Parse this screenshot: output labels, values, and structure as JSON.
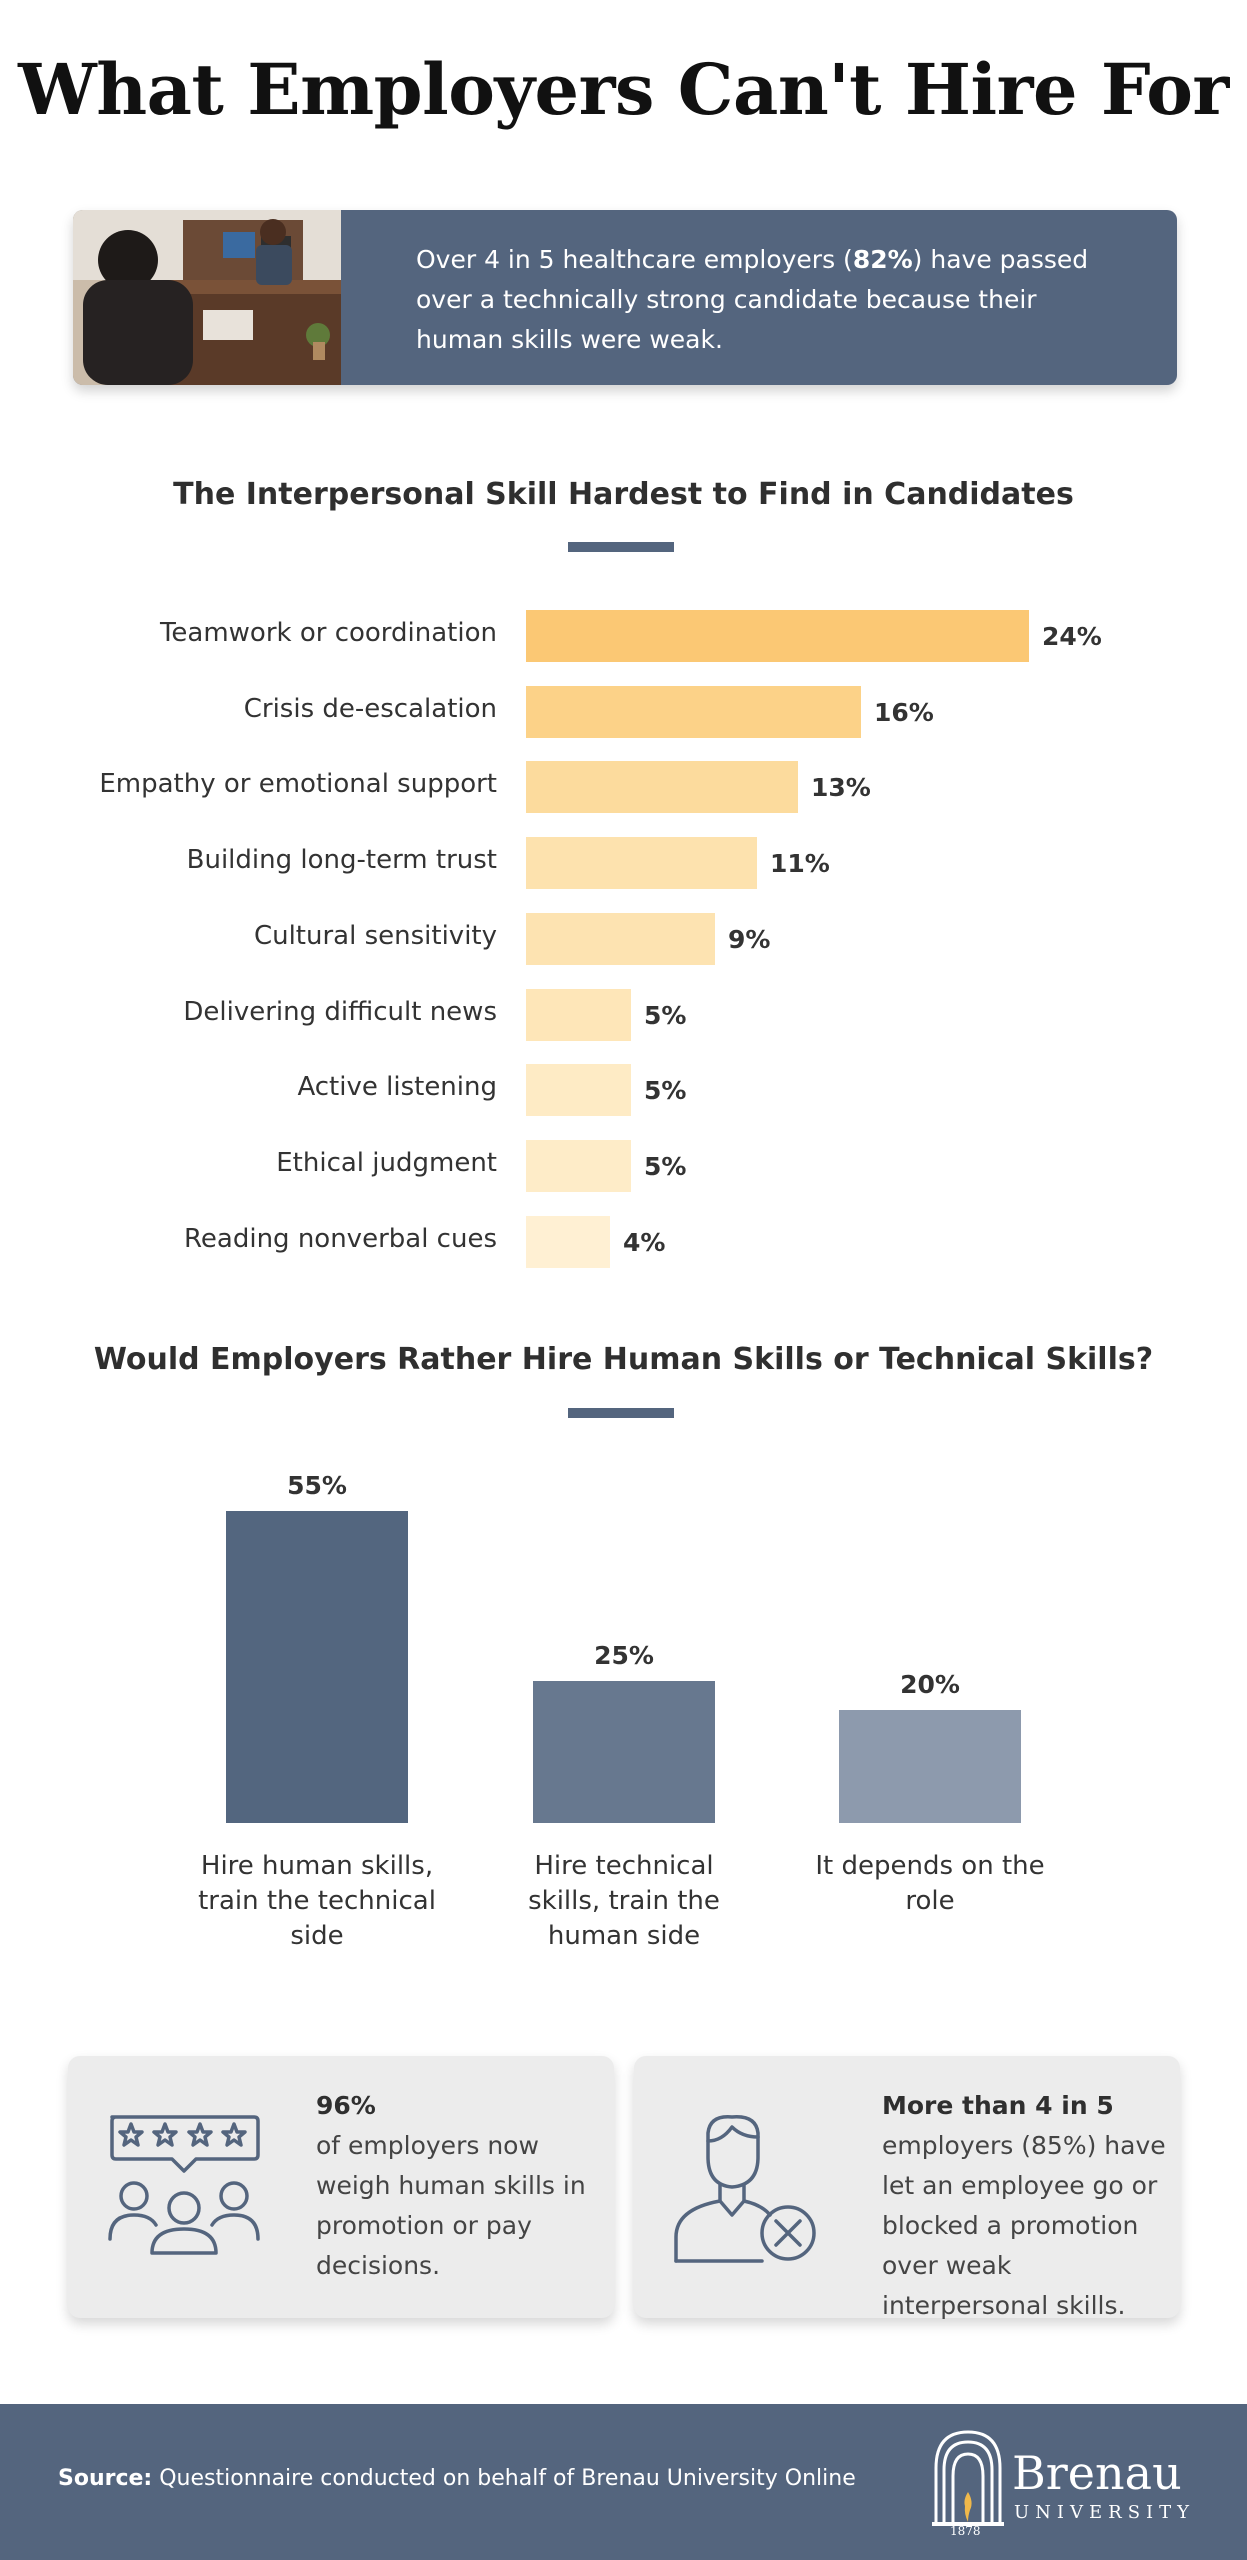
{
  "title": "What Employers Can't Hire For",
  "intro": {
    "text_before": "Over 4 in 5 healthcare employers (",
    "highlight": "82%",
    "text_after": ") have passed over a technically strong candidate because their human skills were weak."
  },
  "section1": {
    "title": "The Interpersonal Skill Hardest to Find in Candidates"
  },
  "section2": {
    "title": "Would Employers Rather Hire Human Skills or Technical Skills?"
  },
  "chart_data": [
    {
      "type": "bar",
      "orientation": "horizontal",
      "title": "The Interpersonal Skill Hardest to Find in Candidates",
      "categories": [
        "Teamwork or coordination",
        "Crisis de-escalation",
        "Empathy or emotional support",
        "Building long-term trust",
        "Cultural sensitivity",
        "Delivering difficult news",
        "Active listening",
        "Ethical judgment",
        "Reading nonverbal cues"
      ],
      "values": [
        24,
        16,
        13,
        11,
        9,
        5,
        5,
        5,
        4
      ],
      "value_labels": [
        "24%",
        "16%",
        "13%",
        "11%",
        "9%",
        "5%",
        "5%",
        "5%",
        "4%"
      ],
      "colors": [
        "#fbc874",
        "#fcd288",
        "#fcdb9d",
        "#fde2ae",
        "#fde3b1",
        "#fee6b8",
        "#feebc5",
        "#feecc8",
        "#fff0d3"
      ],
      "xlim": [
        0,
        24
      ],
      "grid": false
    },
    {
      "type": "bar",
      "orientation": "vertical",
      "title": "Would Employers Rather Hire Human Skills or Technical Skills?",
      "categories": [
        "Hire human skills, train the technical side",
        "Hire technical skills, train the human side",
        "It depends on the role"
      ],
      "values": [
        55,
        25,
        20
      ],
      "value_labels": [
        "55%",
        "25%",
        "20%"
      ],
      "colors": [
        "#53667f",
        "#67788f",
        "#8d9aad"
      ],
      "ylim": [
        0,
        55
      ],
      "grid": false
    }
  ],
  "stats": [
    {
      "headline": "96%",
      "body": "of employers now weigh human skills in promotion or pay decisions.",
      "icon": "rating-people-icon"
    },
    {
      "headline": "More than 4 in 5",
      "body": "employers (85%) have let an employee go or blocked a promotion over weak interpersonal skills.",
      "icon": "person-reject-icon"
    }
  ],
  "footer": {
    "source_label": "Source:",
    "source_text": "Questionnaire conducted on behalf of Brenau University Online",
    "logo_word": "Brenau",
    "logo_sub": "UNIVERSITY",
    "logo_year": "1878"
  },
  "colors": {
    "navy": "#54657e",
    "bar_top": "#fbc874",
    "card_bg": "#ececec"
  }
}
